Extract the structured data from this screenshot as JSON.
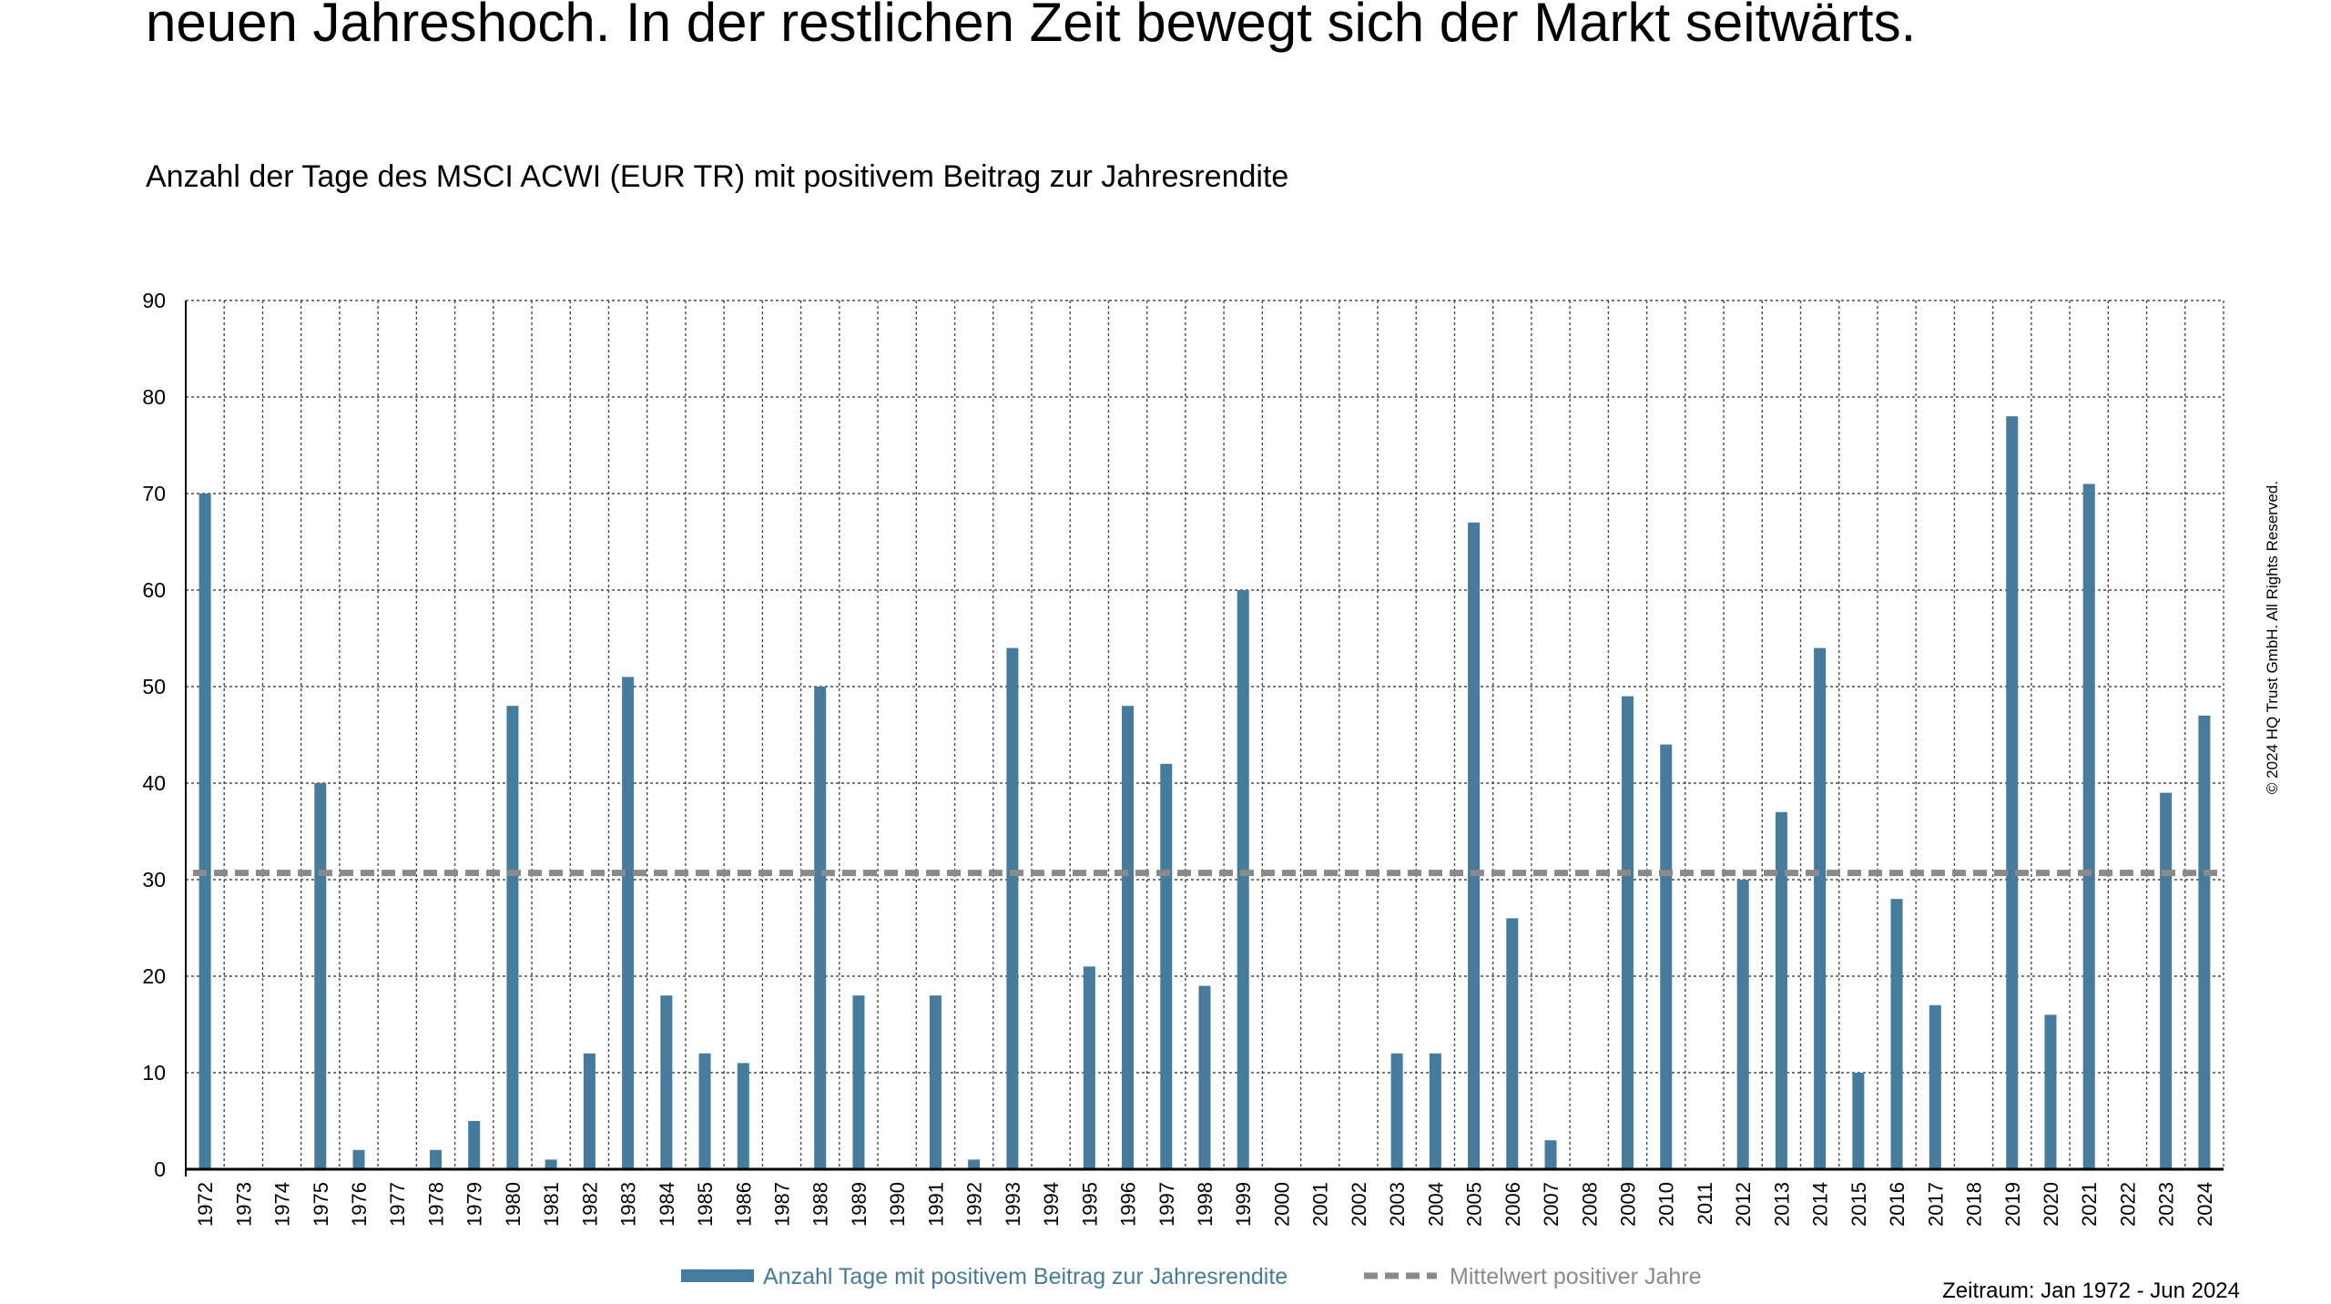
{
  "headline": "neuen Jahreshoch. In der restlichen Zeit bewegt sich der Markt seitwärts.",
  "copyright": "© 2024 HQ Trust GmbH. All Rights Reserved.",
  "period": "Zeitraum: Jan 1972 - Jun 2024",
  "colors": {
    "bar": "#457b9d",
    "mean": "#8a8a8a",
    "grid": "#4a4a4a"
  },
  "chart_data": {
    "type": "bar",
    "title": "Anzahl der Tage des MSCI ACWI (EUR TR) mit positivem Beitrag zur Jahresrendite",
    "xlabel": "",
    "ylabel": "",
    "ylim": [
      0,
      90
    ],
    "yticks": [
      0,
      10,
      20,
      30,
      40,
      50,
      60,
      70,
      80,
      90
    ],
    "grid": true,
    "legend_position": "bottom-center",
    "categories": [
      "1972",
      "1973",
      "1974",
      "1975",
      "1976",
      "1977",
      "1978",
      "1979",
      "1980",
      "1981",
      "1982",
      "1983",
      "1984",
      "1985",
      "1986",
      "1987",
      "1988",
      "1989",
      "1990",
      "1991",
      "1992",
      "1993",
      "1994",
      "1995",
      "1996",
      "1997",
      "1998",
      "1999",
      "2000",
      "2001",
      "2002",
      "2003",
      "2004",
      "2005",
      "2006",
      "2007",
      "2008",
      "2009",
      "2010",
      "2011",
      "2012",
      "2013",
      "2014",
      "2015",
      "2016",
      "2017",
      "2018",
      "2019",
      "2020",
      "2021",
      "2022",
      "2023",
      "2024"
    ],
    "series": [
      {
        "name": "Anzahl Tage mit positivem Beitrag zur Jahresrendite",
        "type": "bar",
        "values": [
          70,
          0,
          0,
          40,
          2,
          0,
          2,
          5,
          48,
          1,
          12,
          51,
          18,
          12,
          11,
          0,
          50,
          18,
          0,
          18,
          1,
          54,
          0,
          21,
          48,
          42,
          19,
          60,
          0,
          0,
          0,
          12,
          12,
          67,
          26,
          3,
          0,
          49,
          44,
          0,
          30,
          37,
          54,
          10,
          28,
          17,
          0,
          78,
          16,
          71,
          0,
          39,
          47
        ]
      },
      {
        "name": "Mittelwert positiver Jahre",
        "type": "line",
        "value": 30.7
      }
    ]
  }
}
